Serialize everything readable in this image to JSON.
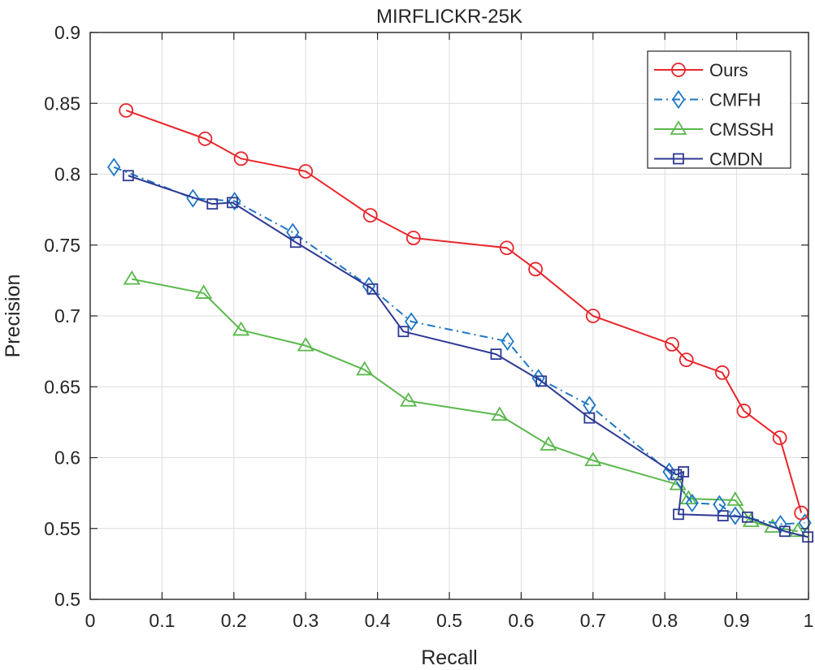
{
  "chart_data": {
    "type": "line",
    "title": "MIRFLICKR-25K",
    "xlabel": "Recall",
    "ylabel": "Precision",
    "xlim": [
      0,
      1
    ],
    "ylim": [
      0.5,
      0.9
    ],
    "xticks": [
      0,
      0.1,
      0.2,
      0.3,
      0.4,
      0.5,
      0.6,
      0.7,
      0.8,
      0.9,
      1
    ],
    "xtick_labels": [
      "0",
      "0.1",
      "0.2",
      "0.3",
      "0.4",
      "0.5",
      "0.6",
      "0.7",
      "0.8",
      "0.9",
      "1"
    ],
    "yticks": [
      0.5,
      0.55,
      0.6,
      0.65,
      0.7,
      0.75,
      0.8,
      0.85,
      0.9
    ],
    "ytick_labels": [
      "0.5",
      "0.55",
      "0.6",
      "0.65",
      "0.7",
      "0.75",
      "0.8",
      "0.85",
      "0.9"
    ],
    "grid": true,
    "legend_position": "top-right",
    "series": [
      {
        "name": "Ours",
        "color": "#e8262b",
        "line_style": "solid",
        "marker": "circle",
        "x": [
          0.05,
          0.16,
          0.21,
          0.3,
          0.39,
          0.45,
          0.58,
          0.62,
          0.7,
          0.81,
          0.83,
          0.88,
          0.91,
          0.96,
          0.99
        ],
        "y": [
          0.845,
          0.825,
          0.811,
          0.802,
          0.771,
          0.755,
          0.748,
          0.733,
          0.7,
          0.68,
          0.669,
          0.66,
          0.633,
          0.614,
          0.561
        ]
      },
      {
        "name": "CMFH",
        "color": "#1f77c4",
        "line_style": "dashdot",
        "marker": "diamond",
        "x": [
          0.033,
          0.143,
          0.201,
          0.282,
          0.388,
          0.447,
          0.581,
          0.624,
          0.695,
          0.806,
          0.838,
          0.876,
          0.898,
          0.961,
          0.995
        ],
        "y": [
          0.805,
          0.783,
          0.781,
          0.759,
          0.721,
          0.696,
          0.682,
          0.656,
          0.637,
          0.59,
          0.568,
          0.567,
          0.559,
          0.553,
          0.554
        ]
      },
      {
        "name": "CMSSH",
        "color": "#5ab84c",
        "line_style": "solid",
        "marker": "triangle",
        "x": [
          0.058,
          0.158,
          0.21,
          0.3,
          0.382,
          0.443,
          0.57,
          0.638,
          0.7,
          0.818,
          0.833,
          0.898,
          0.92,
          0.95,
          0.985
        ],
        "y": [
          0.726,
          0.716,
          0.69,
          0.679,
          0.662,
          0.64,
          0.63,
          0.609,
          0.598,
          0.581,
          0.571,
          0.57,
          0.555,
          0.551,
          0.548
        ]
      },
      {
        "name": "CMDN",
        "color": "#2e3a94",
        "line_style": "solid",
        "marker": "square",
        "x": [
          0.053,
          0.17,
          0.198,
          0.286,
          0.393,
          0.436,
          0.565,
          0.628,
          0.695,
          0.816,
          0.826,
          0.819,
          0.881,
          0.915,
          0.967,
          0.999
        ],
        "y": [
          0.799,
          0.779,
          0.78,
          0.752,
          0.719,
          0.689,
          0.673,
          0.654,
          0.628,
          0.588,
          0.59,
          0.56,
          0.559,
          0.558,
          0.548,
          0.544
        ]
      }
    ]
  }
}
